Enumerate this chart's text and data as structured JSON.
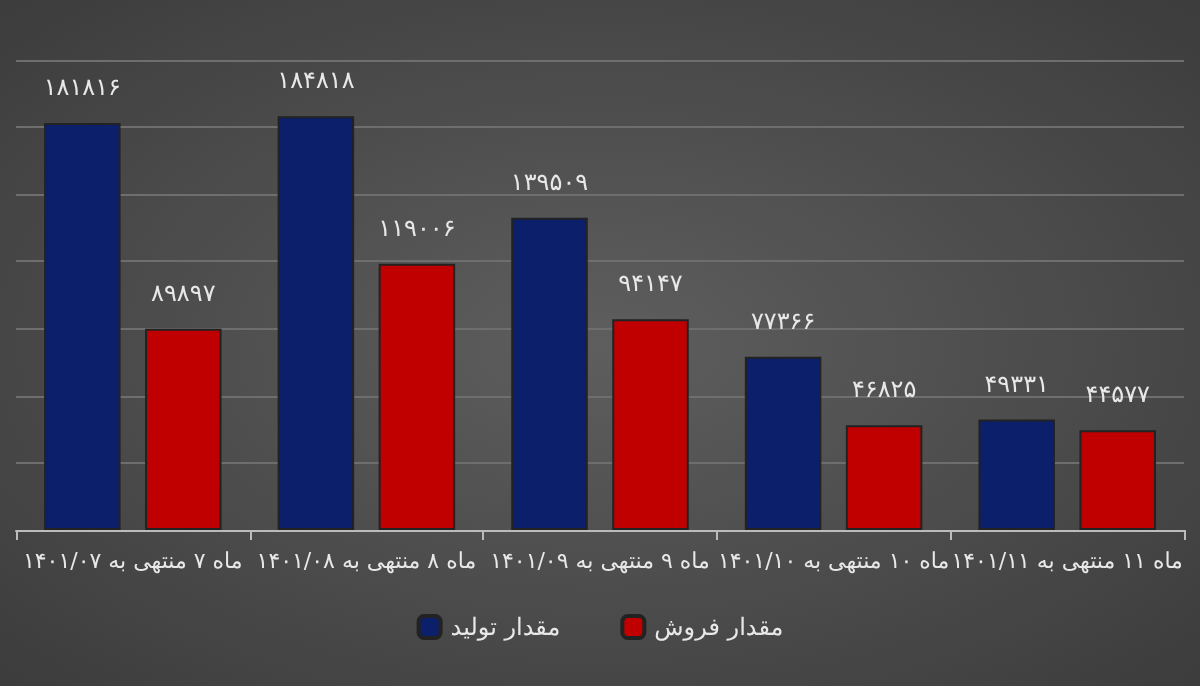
{
  "chart_data": {
    "type": "bar",
    "categories": [
      "ماه ۷ منتهی به ۱۴۰۱/۰۷",
      "ماه ۸ منتهی به ۱۴۰۱/۰۸",
      "ماه ۹ منتهی به ۱۴۰۱/۰۹",
      "ماه ۱۰ منتهی به ۱۴۰۱/۱۰",
      "ماه ۱۱ منتهی به ۱۴۰۱/۱۱"
    ],
    "series": [
      {
        "name": "مقدار تولید",
        "color": "#0b1f6b",
        "values": [
          181816,
          184818,
          139509,
          77366,
          49331
        ],
        "value_labels": [
          "۱۸۱۸۱۶",
          "۱۸۴۸۱۸",
          "۱۳۹۵۰۹",
          "۷۷۳۶۶",
          "۴۹۳۳۱"
        ]
      },
      {
        "name": "مقدار فروش",
        "color": "#c00000",
        "values": [
          89897,
          119006,
          94147,
          46825,
          44577
        ],
        "value_labels": [
          "۸۹۸۹۷",
          "۱۱۹۰۰۶",
          "۹۴۱۴۷",
          "۴۶۸۲۵",
          "۴۴۵۷۷"
        ]
      }
    ],
    "grid": "y",
    "legend": "bottom"
  }
}
